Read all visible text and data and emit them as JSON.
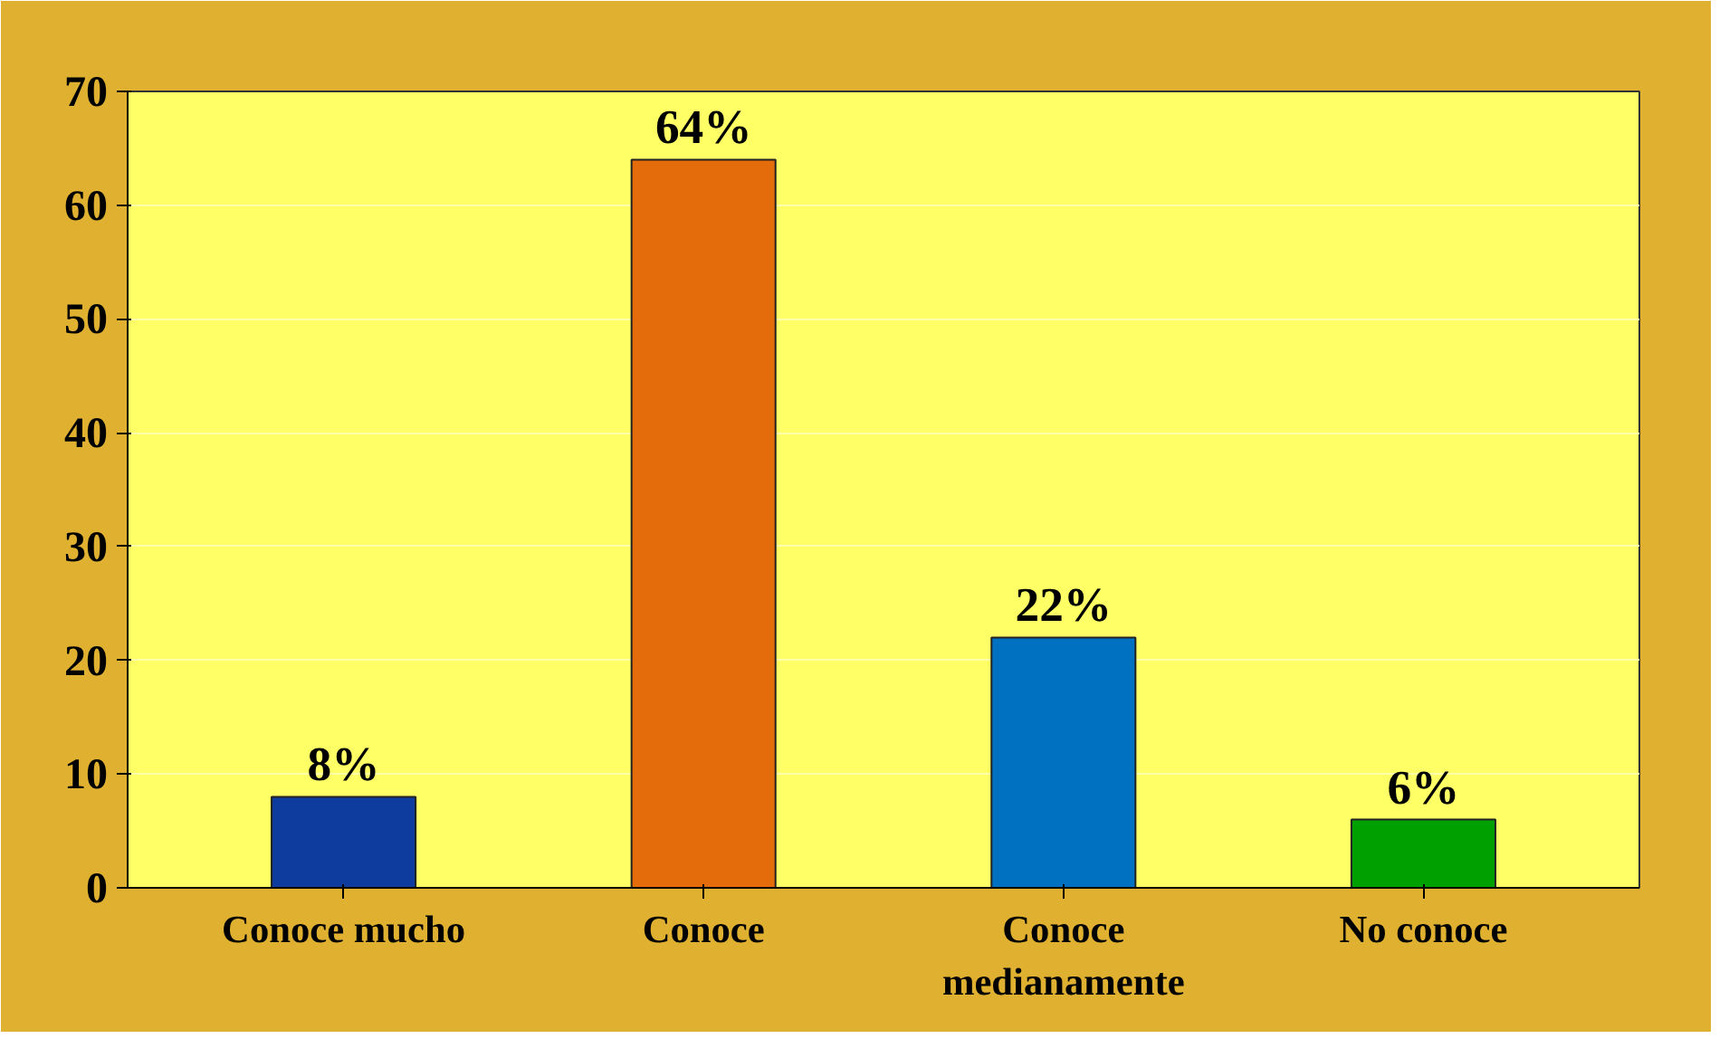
{
  "chart_data": {
    "type": "bar",
    "categories": [
      "Conoce mucho",
      "Conoce",
      "Conoce\nmedianamente",
      "No conoce"
    ],
    "values": [
      8,
      64,
      22,
      6
    ],
    "colors": [
      "#0d3b9e",
      "#e46c0a",
      "#0070c0",
      "#00a000"
    ],
    "value_labels": [
      "8%",
      "64%",
      "22%",
      "6%"
    ],
    "ylim": [
      0,
      70
    ],
    "yticks": [
      0,
      10,
      20,
      30,
      40,
      50,
      60,
      70
    ],
    "grid": "y"
  }
}
